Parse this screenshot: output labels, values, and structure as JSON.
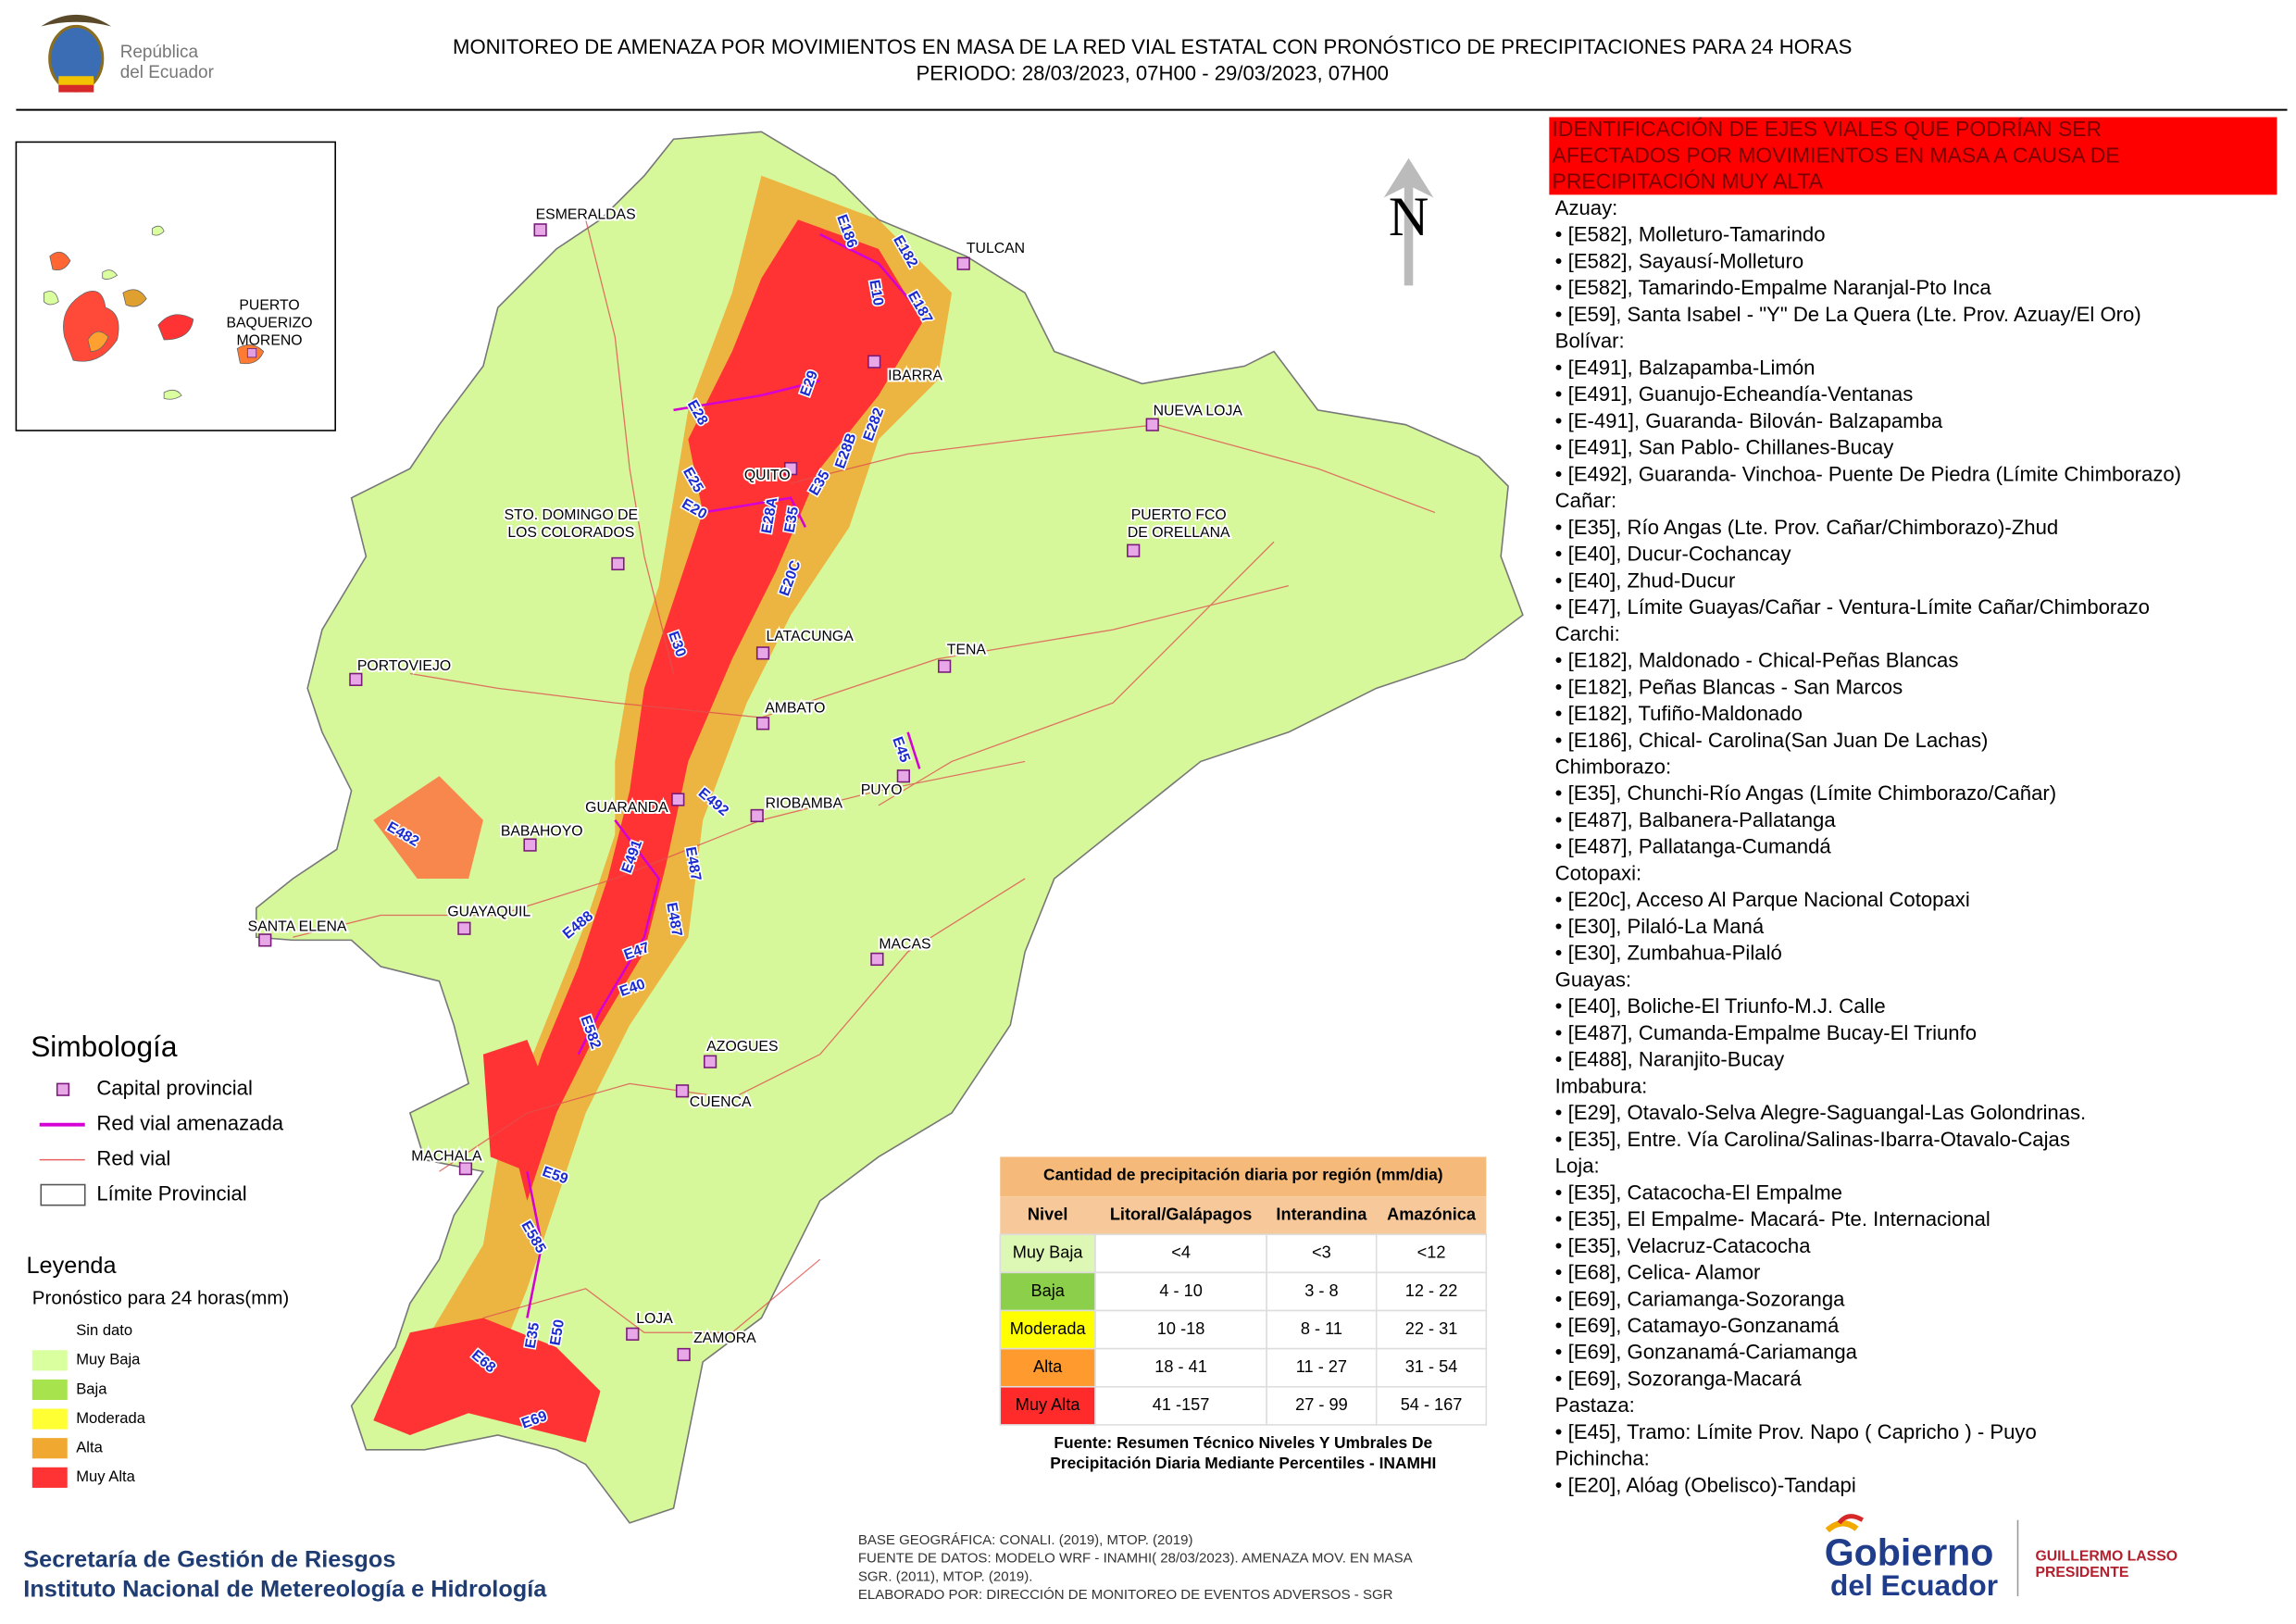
{
  "header": {
    "brand": [
      "República",
      "del Ecuador"
    ],
    "title": "MONITOREO DE AMENAZA POR MOVIMIENTOS EN MASA DE LA RED VIAL  ESTATAL  CON PRONÓSTICO  DE  PRECIPITACIONES PARA 24 HORAS",
    "period": "PERIODO: 28/03/2023, 07H00 - 29/03/2023, 07H00"
  },
  "inset": {
    "label": [
      "PUERTO",
      "BAQUERIZO",
      "MORENO"
    ]
  },
  "map": {
    "north": "N",
    "cities": [
      [
        "ESMERALDAS"
      ],
      [
        "TULCAN"
      ],
      [
        "IBARRA"
      ],
      [
        "NUEVA LOJA"
      ],
      [
        "QUITO"
      ],
      [
        "STO. DOMINGO DE",
        "LOS COLORADOS"
      ],
      [
        "PUERTO FCO",
        "DE ORELLANA"
      ],
      [
        "LATACUNGA"
      ],
      [
        "TENA"
      ],
      [
        "PORTOVIEJO"
      ],
      [
        "AMBATO"
      ],
      [
        "GUARANDA"
      ],
      [
        "RIOBAMBA"
      ],
      [
        "PUYO"
      ],
      [
        "BABAHOYO"
      ],
      [
        "GUAYAQUIL"
      ],
      [
        "SANTA ELENA"
      ],
      [
        "MACAS"
      ],
      [
        "AZOGUES"
      ],
      [
        "CUENCA"
      ],
      [
        "MACHALA"
      ],
      [
        "LOJA"
      ],
      [
        "ZAMORA"
      ]
    ],
    "roads": [
      "E186",
      "E182",
      "E10",
      "E187",
      "E29",
      "E28",
      "E282",
      "E28B",
      "E35",
      "E25",
      "E20",
      "E28A",
      "E35",
      "E20C",
      "E30",
      "E45",
      "E492",
      "E482",
      "E491",
      "E487",
      "E487",
      "E488",
      "E47",
      "E40",
      "E582",
      "E59",
      "E585",
      "E35",
      "E50",
      "E68",
      "E69"
    ]
  },
  "symbology": {
    "title": "Simbología",
    "items": [
      "Capital provincial",
      "Red vial amenazada",
      "Red vial",
      "Límite Provincial"
    ]
  },
  "legend": {
    "title": "Leyenda",
    "subtitle": "Pronóstico para 24 horas(mm)",
    "items": [
      {
        "label": "Sin dato",
        "color": "#ffffff"
      },
      {
        "label": "Muy Baja",
        "color": "#d9ff9e"
      },
      {
        "label": "Baja",
        "color": "#a6e34d"
      },
      {
        "label": "Moderada",
        "color": "#ffff33"
      },
      {
        "label": "Alta",
        "color": "#f0a830"
      },
      {
        "label": "Muy Alta",
        "color": "#ff3333"
      }
    ]
  },
  "table": {
    "title": "Cantidad de precipitación diaria por región (mm/dia)",
    "headers": [
      "Nivel",
      "Litoral/Galápagos",
      "Interandina",
      "Amazónica"
    ],
    "rows": [
      [
        "Muy Baja",
        "<4",
        "<3",
        "<12"
      ],
      [
        "Baja",
        "4 - 10",
        "3 - 8",
        "12 - 22"
      ],
      [
        "Moderada",
        "10 -18",
        "8 - 11",
        "22 - 31"
      ],
      [
        "Alta",
        "18 - 41",
        "11 - 27",
        "31 - 54"
      ],
      [
        "Muy Alta",
        "41 -157",
        "27 - 99",
        "54 - 167"
      ]
    ],
    "level_colors": [
      "#ddf7b5",
      "#8ccf4a",
      "#ffff00",
      "#ff9a2e",
      "#ff2a2a"
    ],
    "source": [
      "Fuente: Resumen Técnico Niveles Y Umbrales De",
      "Precipitación Diaria Mediante Percentiles - INAMHI"
    ]
  },
  "panel": {
    "title": [
      "IDENTIFICACIÓN DE EJES VIALES QUE PODRÍAN SER",
      "AFECTADOS POR MOVIMIENTOS EN MASA A CAUSA DE",
      "PRECIPITACIÓN MUY ALTA"
    ],
    "groups": [
      {
        "province": "Azuay:",
        "roads": [
          "• [E582], Molleturo-Tamarindo",
          "• [E582], Sayausí-Molleturo",
          "• [E582], Tamarindo-Empalme Naranjal-Pto Inca",
          "• [E59], Santa Isabel - \"Y\" De La Quera (Lte. Prov. Azuay/El Oro)"
        ]
      },
      {
        "province": "Bolívar:",
        "roads": [
          "• [E491], Balzapamba-Limón",
          "• [E491], Guanujo-Echeandía-Ventanas",
          "• [E-491], Guaranda- Bilován- Balzapamba",
          "• [E491], San Pablo- Chillanes-Bucay",
          "• [E492], Guaranda- Vinchoa- Puente De Piedra (Límite Chimborazo)"
        ]
      },
      {
        "province": "Cañar:",
        "roads": [
          "• [E35], Río Angas (Lte. Prov. Cañar/Chimborazo)-Zhud",
          "• [E40], Ducur-Cochancay",
          "• [E40], Zhud-Ducur",
          "• [E47], Límite Guayas/Cañar - Ventura-Límite Cañar/Chimborazo"
        ]
      },
      {
        "province": "Carchi:",
        "roads": [
          "• [E182], Maldonado - Chical-Peñas Blancas",
          "• [E182], Peñas Blancas - San Marcos",
          "• [E182], Tufiño-Maldonado",
          "• [E186], Chical- Carolina(San Juan De Lachas)"
        ]
      },
      {
        "province": "Chimborazo:",
        "roads": [
          "• [E35], Chunchi-Río Angas (Límite Chimborazo/Cañar)",
          "• [E487], Balbanera-Pallatanga",
          "• [E487], Pallatanga-Cumandá"
        ]
      },
      {
        "province": "Cotopaxi:",
        "roads": [
          "• [E20c], Acceso Al Parque Nacional Cotopaxi",
          "• [E30], Pilaló-La Maná",
          "• [E30], Zumbahua-Pilaló"
        ]
      },
      {
        "province": "Guayas:",
        "roads": [
          "• [E40], Boliche-El Triunfo-M.J. Calle",
          "• [E487], Cumanda-Empalme Bucay-El Triunfo",
          "• [E488], Naranjito-Bucay"
        ]
      },
      {
        "province": "Imbabura:",
        "roads": [
          "• [E29], Otavalo-Selva Alegre-Saguangal-Las Golondrinas.",
          "• [E35], Entre. Vía Carolina/Salinas-Ibarra-Otavalo-Cajas"
        ]
      },
      {
        "province": "Loja:",
        "roads": [
          "• [E35], Catacocha-El Empalme",
          "• [E35], El Empalme- Macará- Pte. Internacional",
          "• [E35], Velacruz-Catacocha",
          "• [E68], Celica- Alamor",
          "• [E69], Cariamanga-Sozoranga",
          "• [E69], Catamayo-Gonzanamá",
          "• [E69], Gonzanamá-Cariamanga",
          "• [E69], Sozoranga-Macará"
        ]
      },
      {
        "province": "Pastaza:",
        "roads": [
          "• [E45], Tramo: Límite Prov. Napo ( Capricho ) - Puyo"
        ]
      },
      {
        "province": "Pichincha:",
        "roads": [
          "• [E20], Alóag (Obelisco)-Tandapi"
        ]
      }
    ]
  },
  "sources": [
    "BASE GEOGRÁFICA: CONALI. (2019), MTOP. (2019)",
    "FUENTE DE DATOS: MODELO WRF - INAMHI( 28/03/2023).  AMENAZA MOV. EN MASA",
    "SGR. (2011), MTOP. (2019).",
    "ELABORADO POR: DIRECCIÓN DE MONITOREO DE EVENTOS ADVERSOS - SGR"
  ],
  "footer": {
    "org": [
      "Secretaría de Gestión de Riesgos",
      "Instituto Nacional de Metereología e Hidrología"
    ],
    "logo": [
      "Gobierno",
      "del Ecuador"
    ],
    "president": [
      "GUILLERMO LASSO",
      "PRESIDENTE"
    ]
  }
}
